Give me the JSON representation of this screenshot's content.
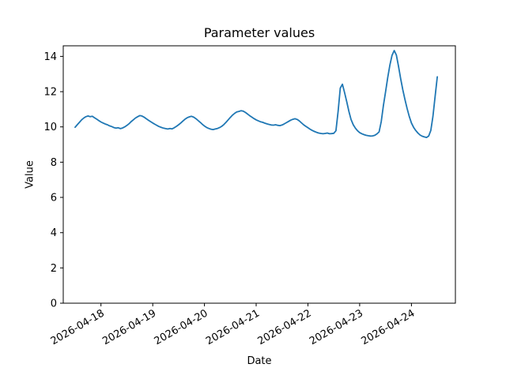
{
  "figure": {
    "background_color": "#ffffff",
    "text_color": "#000000"
  },
  "chart_data": {
    "type": "line",
    "title": "Parameter values",
    "xlabel": "Date",
    "ylabel": "Value",
    "grid": false,
    "legend": null,
    "ylim": [
      0,
      14.6
    ],
    "y_ticks": [
      0,
      2,
      4,
      6,
      8,
      10,
      12,
      14
    ],
    "x_ticks": [
      {
        "hour": 0,
        "label": "2026-04-18"
      },
      {
        "hour": 24,
        "label": "2026-04-19"
      },
      {
        "hour": 48,
        "label": "2026-04-20"
      },
      {
        "hour": 72,
        "label": "2026-04-21"
      },
      {
        "hour": 96,
        "label": "2026-04-22"
      },
      {
        "hour": 120,
        "label": "2026-04-23"
      },
      {
        "hour": 144,
        "label": "2026-04-24"
      }
    ],
    "xlim_hours": [
      -17.5,
      164.4
    ],
    "tick_label_rotation_deg": 30,
    "series": [
      {
        "name": "parameter-values",
        "color": "#1f77b4",
        "line_width": 1.8,
        "x_start_hour": -12,
        "x_step_hours": 1,
        "x_start_datetime": "2026-04-17 12:00",
        "values": [
          9.98,
          10.12,
          10.26,
          10.4,
          10.5,
          10.58,
          10.62,
          10.58,
          10.6,
          10.52,
          10.44,
          10.36,
          10.28,
          10.22,
          10.16,
          10.12,
          10.06,
          10.02,
          9.96,
          9.93,
          9.95,
          9.9,
          9.94,
          10.0,
          10.08,
          10.18,
          10.3,
          10.4,
          10.5,
          10.58,
          10.64,
          10.62,
          10.55,
          10.46,
          10.38,
          10.3,
          10.22,
          10.15,
          10.08,
          10.02,
          9.97,
          9.93,
          9.9,
          9.88,
          9.91,
          9.89,
          9.95,
          10.03,
          10.12,
          10.22,
          10.33,
          10.44,
          10.52,
          10.57,
          10.6,
          10.55,
          10.47,
          10.37,
          10.26,
          10.15,
          10.05,
          9.97,
          9.91,
          9.87,
          9.85,
          9.88,
          9.91,
          9.96,
          10.03,
          10.13,
          10.26,
          10.4,
          10.54,
          10.67,
          10.77,
          10.85,
          10.88,
          10.92,
          10.89,
          10.82,
          10.73,
          10.63,
          10.55,
          10.47,
          10.4,
          10.34,
          10.29,
          10.26,
          10.21,
          10.17,
          10.14,
          10.11,
          10.1,
          10.12,
          10.09,
          10.07,
          10.11,
          10.17,
          10.24,
          10.31,
          10.38,
          10.43,
          10.46,
          10.42,
          10.34,
          10.23,
          10.12,
          10.03,
          9.95,
          9.87,
          9.8,
          9.74,
          9.69,
          9.65,
          9.63,
          9.61,
          9.63,
          9.65,
          9.61,
          9.62,
          9.64,
          9.78,
          10.9,
          12.2,
          12.42,
          11.95,
          11.42,
          10.88,
          10.42,
          10.12,
          9.93,
          9.78,
          9.68,
          9.61,
          9.56,
          9.52,
          9.5,
          9.48,
          9.49,
          9.52,
          9.6,
          9.72,
          10.3,
          11.2,
          12.0,
          12.8,
          13.5,
          14.05,
          14.33,
          14.08,
          13.45,
          12.75,
          12.1,
          11.55,
          11.05,
          10.6,
          10.22,
          9.98,
          9.8,
          9.65,
          9.54,
          9.47,
          9.43,
          9.4,
          9.48,
          9.8,
          10.6,
          11.75,
          12.84
        ]
      }
    ]
  }
}
